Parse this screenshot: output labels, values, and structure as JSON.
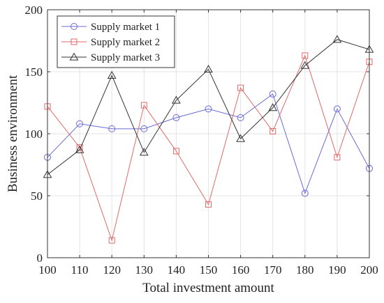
{
  "chart_data": {
    "type": "line",
    "title": "",
    "xlabel": "Total investment amount",
    "ylabel": "Business environment",
    "xlim": [
      100,
      200
    ],
    "ylim": [
      0,
      200
    ],
    "xticks": [
      100,
      110,
      120,
      130,
      140,
      150,
      160,
      170,
      180,
      190,
      200
    ],
    "yticks": [
      0,
      50,
      100,
      150,
      200
    ],
    "grid": true,
    "legend_position": "top-left",
    "x": [
      100,
      110,
      120,
      130,
      140,
      150,
      160,
      170,
      180,
      190,
      200
    ],
    "series": [
      {
        "name": "Supply market 1",
        "marker": "circle",
        "color": "#6b6bd6",
        "values": [
          81,
          108,
          104,
          104,
          113,
          120,
          113,
          132,
          52,
          120,
          72
        ]
      },
      {
        "name": "Supply market 2",
        "marker": "square",
        "color": "#e06a6a",
        "values": [
          122,
          89,
          14,
          123,
          86,
          43,
          137,
          102,
          163,
          81,
          158
        ]
      },
      {
        "name": "Supply market 3",
        "marker": "triangle",
        "color": "#333333",
        "values": [
          67,
          87,
          147,
          85,
          127,
          152,
          96,
          121,
          155,
          176,
          168
        ]
      }
    ]
  }
}
